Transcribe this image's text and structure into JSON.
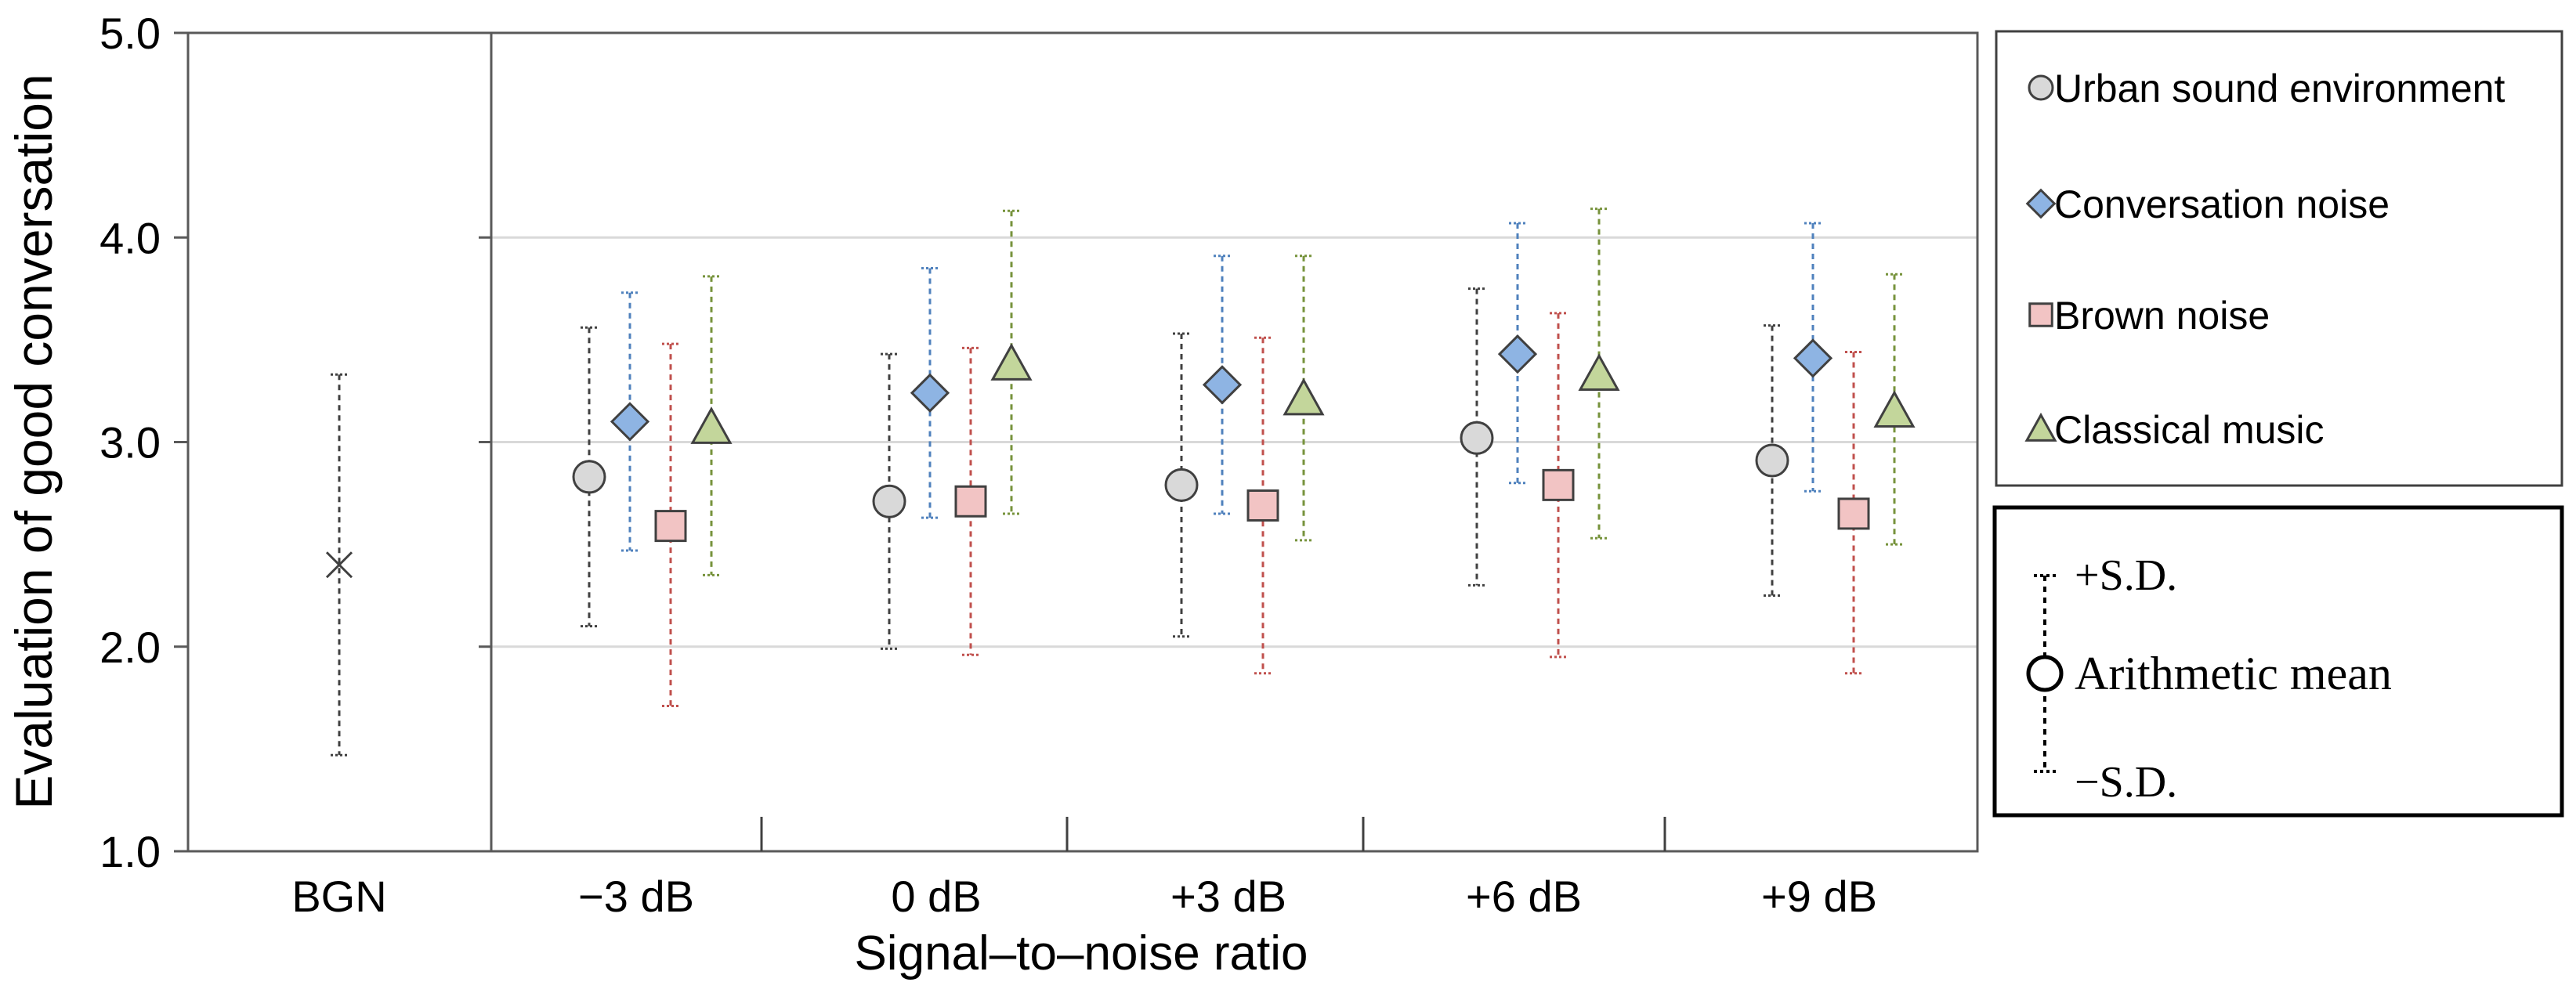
{
  "chart_data": {
    "type": "scatter",
    "title": "",
    "ylabel": "Evaluation of good conversation",
    "xlabel": "Signal–to–noise ratio",
    "ylim": [
      1.0,
      5.0
    ],
    "yticks": [
      "1.0",
      "2.0",
      "3.0",
      "4.0",
      "5.0"
    ],
    "grid": true,
    "baseline": {
      "category": "BGN",
      "mean": 2.4,
      "plus_sd": 3.33,
      "minus_sd": 1.47
    },
    "categories": [
      "−3 dB",
      "0 dB",
      "+3 dB",
      "+6 dB",
      "+9 dB"
    ],
    "series": [
      {
        "name": "Urban sound environment",
        "marker": "circle",
        "fill": "#d9d9d9",
        "whisker": "#404040",
        "mean": [
          2.83,
          2.71,
          2.79,
          3.02,
          2.91
        ],
        "plus_sd": [
          3.56,
          3.43,
          3.53,
          3.75,
          3.57
        ],
        "minus_sd": [
          2.1,
          1.99,
          2.05,
          2.3,
          2.25
        ]
      },
      {
        "name": "Conversation noise",
        "marker": "diamond",
        "fill": "#8eb4e3",
        "whisker": "#4f81bd",
        "mean": [
          3.1,
          3.24,
          3.28,
          3.43,
          3.41
        ],
        "plus_sd": [
          3.73,
          3.85,
          3.91,
          4.07,
          4.07
        ],
        "minus_sd": [
          2.47,
          2.63,
          2.65,
          2.8,
          2.76
        ]
      },
      {
        "name": "Brown noise",
        "marker": "square",
        "fill": "#f2c4c4",
        "whisker": "#c0504d",
        "mean": [
          2.59,
          2.71,
          2.69,
          2.79,
          2.65
        ],
        "plus_sd": [
          3.48,
          3.46,
          3.51,
          3.63,
          3.44
        ],
        "minus_sd": [
          1.71,
          1.96,
          1.87,
          1.95,
          1.87
        ]
      },
      {
        "name": "Classical music",
        "marker": "triangle",
        "fill": "#c3d69b",
        "whisker": "#77933c",
        "mean": [
          3.07,
          3.38,
          3.21,
          3.33,
          3.15
        ],
        "plus_sd": [
          3.81,
          4.13,
          3.91,
          4.14,
          3.82
        ],
        "minus_sd": [
          2.35,
          2.65,
          2.52,
          2.53,
          2.5
        ]
      }
    ],
    "legend_position": "right",
    "sd_legend": {
      "plus_label": "+S.D.",
      "mean_label": "Arithmetic mean",
      "minus_label": "−S.D."
    }
  }
}
